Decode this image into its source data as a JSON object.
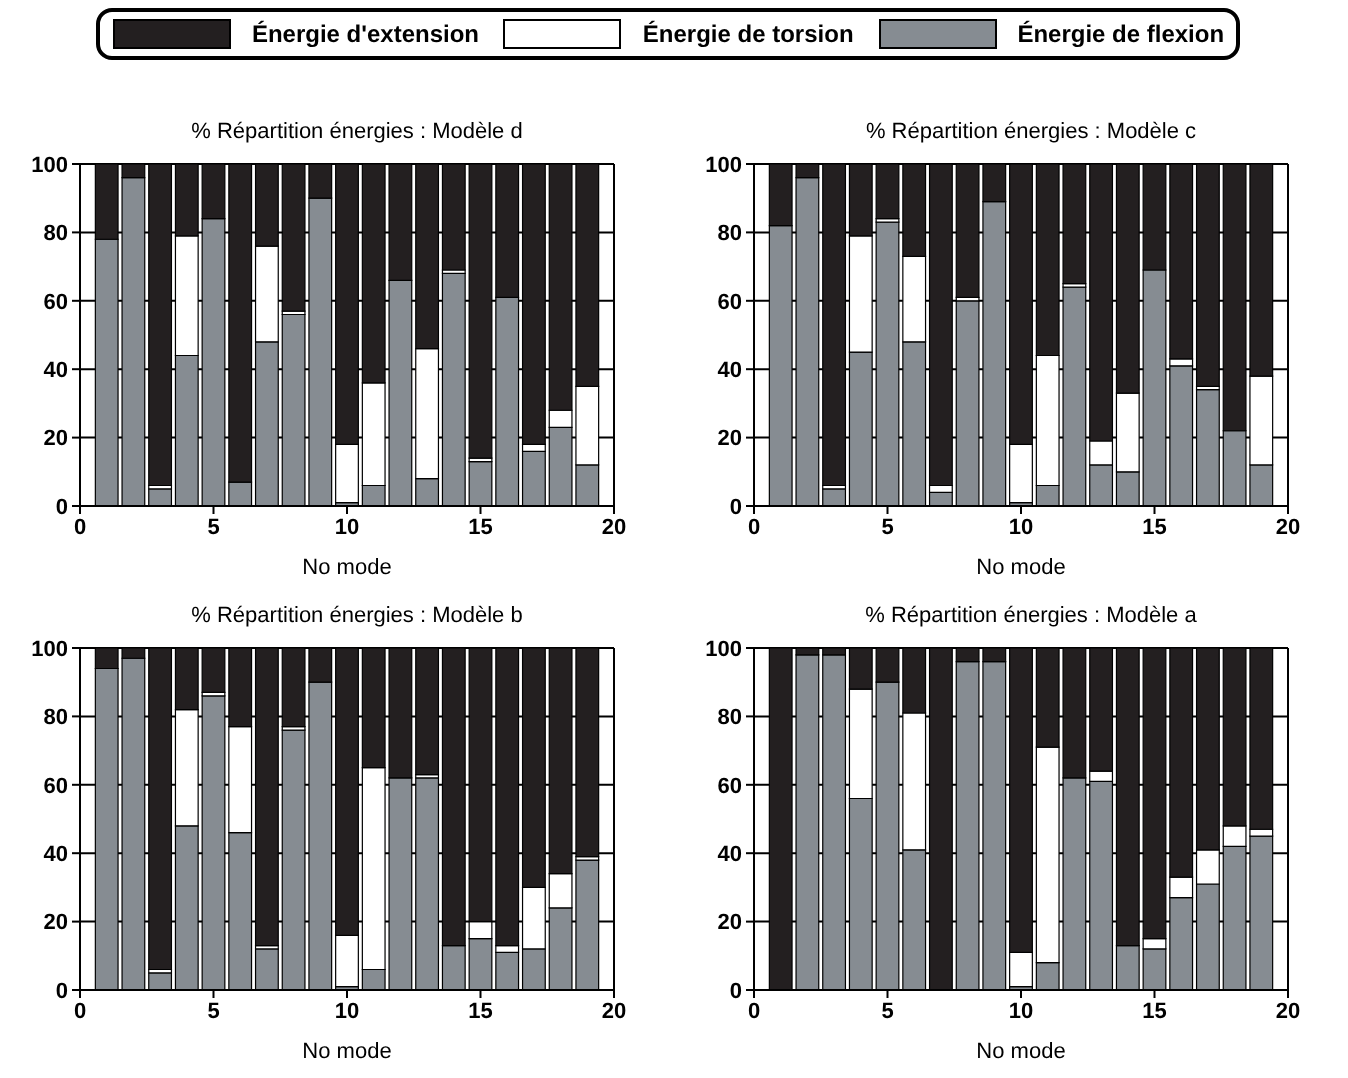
{
  "chart_data": [
    {
      "type": "bar",
      "title": "% Répartition énergies : Modèle d",
      "xlabel": "No mode",
      "x": [
        1,
        2,
        3,
        4,
        5,
        6,
        7,
        8,
        9,
        10,
        11,
        12,
        13,
        14,
        15,
        16,
        17,
        18,
        19
      ],
      "stacked": true,
      "xlim": [
        0,
        20
      ],
      "xticks": [
        0,
        5,
        10,
        15,
        20
      ],
      "ylim": [
        0,
        100
      ],
      "yticks": [
        0,
        20,
        40,
        60,
        80,
        100
      ],
      "grid": true,
      "legend": "top",
      "series": [
        {
          "name": "Énergie de flexion",
          "color": "#868c92",
          "values": [
            78,
            96,
            5,
            44,
            84,
            7,
            48,
            56,
            90,
            1,
            6,
            66,
            8,
            68,
            13,
            61,
            16,
            23,
            12
          ]
        },
        {
          "name": "Énergie de torsion",
          "color": "#ffffff",
          "values": [
            0,
            0,
            1,
            35,
            0,
            0,
            28,
            1,
            0,
            17,
            30,
            0,
            38,
            1,
            1,
            0,
            2,
            5,
            23
          ]
        },
        {
          "name": "Énergie d'extension",
          "color": "#231f20",
          "values": [
            22,
            4,
            94,
            21,
            16,
            93,
            24,
            43,
            10,
            82,
            64,
            34,
            54,
            31,
            86,
            39,
            82,
            72,
            65
          ]
        }
      ]
    },
    {
      "type": "bar",
      "title": "% Répartition énergies : Modèle c",
      "xlabel": "No mode",
      "x": [
        1,
        2,
        3,
        4,
        5,
        6,
        7,
        8,
        9,
        10,
        11,
        12,
        13,
        14,
        15,
        16,
        17,
        18,
        19
      ],
      "stacked": true,
      "xlim": [
        0,
        20
      ],
      "xticks": [
        0,
        5,
        10,
        15,
        20
      ],
      "ylim": [
        0,
        100
      ],
      "yticks": [
        0,
        20,
        40,
        60,
        80,
        100
      ],
      "grid": true,
      "series": [
        {
          "color": "#868c92",
          "values": [
            82,
            96,
            5,
            45,
            83,
            48,
            4,
            60,
            89,
            1,
            6,
            64,
            12,
            10,
            69,
            41,
            34,
            22,
            12
          ]
        },
        {
          "color": "#ffffff",
          "values": [
            0,
            0,
            1,
            34,
            1,
            25,
            2,
            1,
            0,
            17,
            38,
            1,
            7,
            23,
            0,
            2,
            1,
            0,
            26
          ]
        },
        {
          "color": "#231f20",
          "values": [
            18,
            4,
            94,
            21,
            16,
            27,
            94,
            39,
            11,
            82,
            56,
            35,
            81,
            67,
            31,
            57,
            65,
            78,
            62
          ]
        }
      ]
    },
    {
      "type": "bar",
      "title": "% Répartition énergies : Modèle b",
      "xlabel": "No mode",
      "x": [
        1,
        2,
        3,
        4,
        5,
        6,
        7,
        8,
        9,
        10,
        11,
        12,
        13,
        14,
        15,
        16,
        17,
        18,
        19
      ],
      "stacked": true,
      "xlim": [
        0,
        20
      ],
      "xticks": [
        0,
        5,
        10,
        15,
        20
      ],
      "ylim": [
        0,
        100
      ],
      "yticks": [
        0,
        20,
        40,
        60,
        80,
        100
      ],
      "grid": true,
      "series": [
        {
          "color": "#868c92",
          "values": [
            94,
            97,
            5,
            48,
            86,
            46,
            12,
            76,
            90,
            1,
            6,
            62,
            62,
            13,
            15,
            11,
            12,
            24,
            38
          ]
        },
        {
          "color": "#ffffff",
          "values": [
            0,
            0,
            1,
            34,
            1,
            31,
            1,
            1,
            0,
            15,
            59,
            0,
            1,
            0,
            5,
            2,
            18,
            10,
            1
          ]
        },
        {
          "color": "#231f20",
          "values": [
            6,
            3,
            94,
            18,
            13,
            23,
            87,
            23,
            10,
            84,
            35,
            38,
            37,
            87,
            80,
            87,
            70,
            66,
            61
          ]
        }
      ]
    },
    {
      "type": "bar",
      "title": "% Répartition énergies : Modèle a",
      "xlabel": "No mode",
      "x": [
        1,
        2,
        3,
        4,
        5,
        6,
        7,
        8,
        9,
        10,
        11,
        12,
        13,
        14,
        15,
        16,
        17,
        18,
        19
      ],
      "stacked": true,
      "xlim": [
        0,
        20
      ],
      "xticks": [
        0,
        5,
        10,
        15,
        20
      ],
      "ylim": [
        0,
        100
      ],
      "yticks": [
        0,
        20,
        40,
        60,
        80,
        100
      ],
      "grid": true,
      "series": [
        {
          "color": "#868c92",
          "values": [
            0,
            98,
            98,
            56,
            90,
            41,
            0,
            96,
            96,
            1,
            8,
            62,
            61,
            13,
            12,
            27,
            31,
            42,
            45
          ]
        },
        {
          "color": "#ffffff",
          "values": [
            0,
            0,
            0,
            32,
            0,
            40,
            0,
            0,
            0,
            10,
            63,
            0,
            3,
            0,
            3,
            6,
            10,
            6,
            2
          ]
        },
        {
          "color": "#231f20",
          "values": [
            100,
            2,
            2,
            12,
            10,
            19,
            100,
            4,
            4,
            89,
            29,
            38,
            36,
            87,
            85,
            67,
            59,
            52,
            53
          ]
        }
      ]
    }
  ]
}
